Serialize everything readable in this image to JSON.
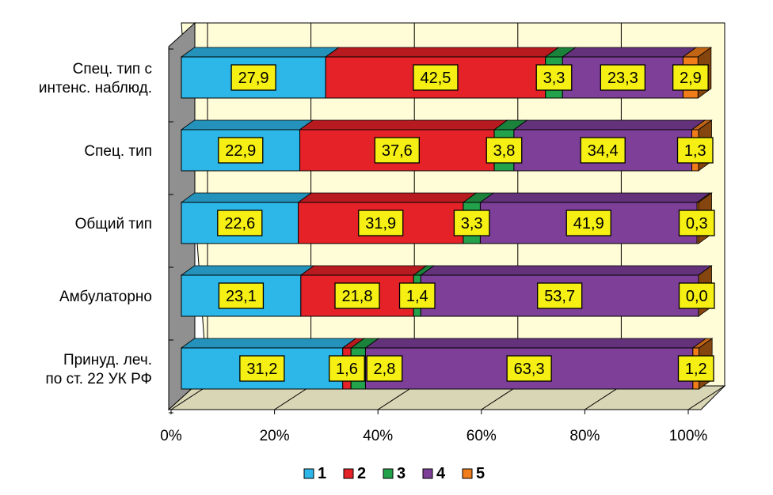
{
  "chart_data": {
    "type": "bar",
    "orientation": "horizontal",
    "stacked": "percent",
    "three_d": true,
    "categories": [
      [
        "Спец. тип с",
        "интенс. наблюд."
      ],
      [
        "Спец. тип"
      ],
      [
        "Общий тип"
      ],
      [
        "Амбулаторно"
      ],
      [
        "Принуд. леч.",
        "по ст. 22 УК РФ"
      ]
    ],
    "series": [
      {
        "name": "1",
        "color": "#2db7e8",
        "values": [
          27.9,
          22.9,
          22.6,
          23.1,
          31.2
        ]
      },
      {
        "name": "2",
        "color": "#e52228",
        "values": [
          42.5,
          37.6,
          31.9,
          21.8,
          1.6
        ]
      },
      {
        "name": "3",
        "color": "#22a24a",
        "values": [
          3.3,
          3.8,
          3.3,
          1.4,
          2.8
        ]
      },
      {
        "name": "4",
        "color": "#7d3f98",
        "values": [
          23.3,
          34.4,
          41.9,
          53.7,
          63.3
        ]
      },
      {
        "name": "5",
        "color": "#f07d1a",
        "values": [
          2.9,
          1.3,
          0.3,
          0.0,
          1.2
        ]
      }
    ],
    "data_labels": [
      [
        "27,9",
        "22,9",
        "22,6",
        "23,1",
        "31,2"
      ],
      [
        "42,5",
        "37,6",
        "31,9",
        "21,8",
        "1,6"
      ],
      [
        "3,3",
        "3,8",
        "3,3",
        "1,4",
        "2,8"
      ],
      [
        "23,3",
        "34,4",
        "41,9",
        "53,7",
        "63,3"
      ],
      [
        "2,9",
        "1,3",
        "0,3",
        "0,0",
        "1,2"
      ]
    ],
    "x_ticks": [
      "0%",
      "20%",
      "40%",
      "60%",
      "80%",
      "100%"
    ],
    "xlim": [
      0,
      100
    ],
    "grid": true,
    "legend_position": "bottom",
    "colors": {
      "wall": "#fffcd8",
      "floor": "#d8d6b4",
      "side_wall": "#909090",
      "data_label_fill": "#f5ef14"
    }
  }
}
